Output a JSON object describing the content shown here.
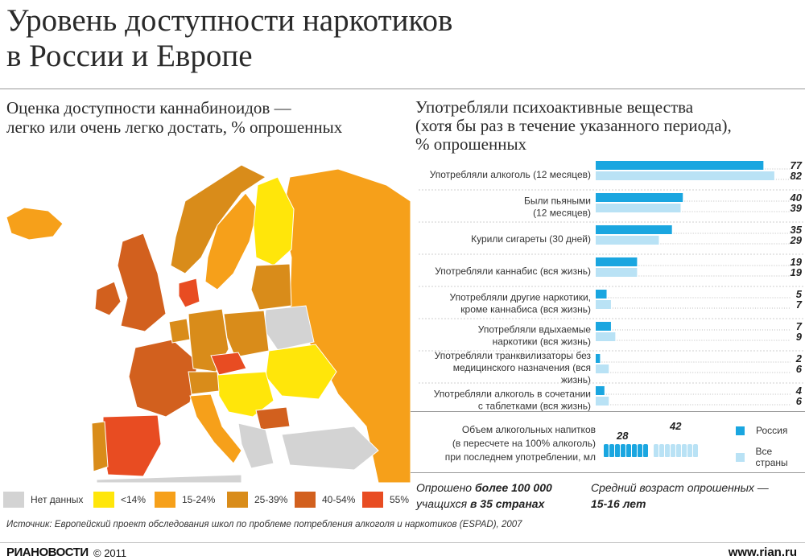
{
  "header": {
    "title_line1": "Уровень доступности наркотиков",
    "title_line2": "в России и Европе"
  },
  "map_section": {
    "subtitle_line1": "Оценка доступности каннабиноидов —",
    "subtitle_line2": "легко или очень легко достать, % опрошенных"
  },
  "legend": [
    {
      "label": "Нет данных",
      "color": "#d3d3d3"
    },
    {
      "label": "<14%",
      "color": "#ffe60a"
    },
    {
      "label": "15-24%",
      "color": "#f6a01a"
    },
    {
      "label": "25-39%",
      "color": "#d98c1a"
    },
    {
      "label": "40-54%",
      "color": "#d2601e"
    },
    {
      "label": "55%",
      "color": "#e84c22"
    }
  ],
  "chart_section": {
    "subtitle_line1": "Употребляли психоактивные вещества",
    "subtitle_line2": "(хотя бы раз в течение указанного периода),",
    "subtitle_line3": "% опрошенных"
  },
  "chart_data": {
    "type": "bar",
    "orientation": "horizontal",
    "categories": [
      [
        "Употребляли алкоголь (12 месяцев)"
      ],
      [
        "Были пьяными",
        "(12 месяцев)"
      ],
      [
        "Курили сигареты (30 дней)"
      ],
      [
        "Употребляли каннабис (вся жизнь)"
      ],
      [
        "Употребляли другие наркотики,",
        "кроме каннабиса (вся жизнь)"
      ],
      [
        "Употребляли вдыхаемые",
        "наркотики (вся жизнь)"
      ],
      [
        "Употребляли транквилизаторы без",
        "медицинского назначения (вся",
        "жизнь)"
      ],
      [
        "Употребляли алкоголь в сочетании",
        "с таблетками (вся жизнь)"
      ]
    ],
    "series": [
      {
        "name": "Россия",
        "color": "#1aa6e0",
        "values": [
          77,
          40,
          35,
          19,
          5,
          7,
          2,
          4
        ]
      },
      {
        "name": "Все страны",
        "color": "#b9e2f5",
        "values": [
          82,
          39,
          29,
          19,
          7,
          9,
          6,
          6
        ]
      }
    ],
    "xlim": [
      0,
      85
    ],
    "data_labels": true
  },
  "alcohol_volume": {
    "text_line1": "Объем алкогольных напитков",
    "text_line2": "(в пересчете на 100% алкоголь)",
    "text_line3": "при последнем употреблении, мл",
    "russia_value": "28",
    "all_value": "42",
    "russia_bottles": 8,
    "all_bottles": 8
  },
  "keys": {
    "russia": "Россия",
    "all": "Все страны"
  },
  "facts": {
    "surveyed_prefix": "Опрошено ",
    "surveyed_bold1": "более 100 000",
    "surveyed_mid": "учащихся ",
    "surveyed_bold2": "в 35 странах",
    "age_line1": "Средний возраст опрошенных —",
    "age_line2": "15-16 лет"
  },
  "footer": {
    "source": "Источник: Европейский проект обследования школ по проблеме потребления алкоголя и наркотиков (ESPAD), 2007",
    "brand": "РИАНОВОСТИ",
    "copyright": "© 2011",
    "site": "www.rian.ru"
  }
}
